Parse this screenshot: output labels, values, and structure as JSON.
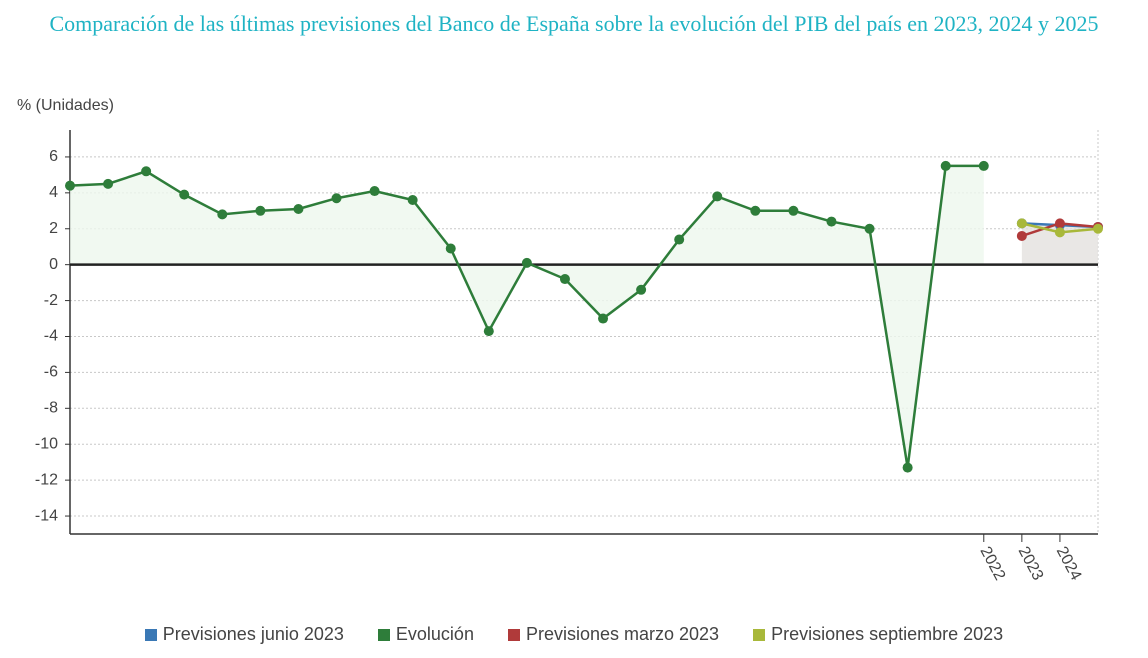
{
  "chart_data": {
    "type": "line",
    "title": "Comparación de las últimas previsiones del Banco de España sobre la evolución del PIB del país en 2023, 2024 y 2025",
    "y_label": "% (Unidades)",
    "categories": [
      null,
      null,
      null,
      null,
      null,
      null,
      null,
      null,
      null,
      null,
      null,
      null,
      null,
      null,
      null,
      null,
      null,
      null,
      null,
      null,
      null,
      null,
      null,
      null,
      "2022",
      "2023",
      "2024",
      null
    ],
    "series": [
      {
        "name": "Previsiones junio 2023",
        "color": "#3a78b5",
        "values": [
          null,
          null,
          null,
          null,
          null,
          null,
          null,
          null,
          null,
          null,
          null,
          null,
          null,
          null,
          null,
          null,
          null,
          null,
          null,
          null,
          null,
          null,
          null,
          null,
          null,
          2.3,
          2.2,
          2.1
        ]
      },
      {
        "name": "Evolución",
        "color": "#2e7d3a",
        "values": [
          4.4,
          4.5,
          5.2,
          3.9,
          2.8,
          3.0,
          3.1,
          3.7,
          4.1,
          3.6,
          0.9,
          -3.7,
          0.1,
          -0.8,
          -3.0,
          -1.4,
          1.4,
          3.8,
          3.0,
          3.0,
          2.4,
          2.0,
          -11.3,
          5.5,
          5.5,
          null,
          null,
          null
        ]
      },
      {
        "name": "Previsiones marzo 2023",
        "color": "#b03a3a",
        "values": [
          null,
          null,
          null,
          null,
          null,
          null,
          null,
          null,
          null,
          null,
          null,
          null,
          null,
          null,
          null,
          null,
          null,
          null,
          null,
          null,
          null,
          null,
          null,
          null,
          null,
          1.6,
          2.3,
          2.1
        ]
      },
      {
        "name": "Previsiones septiembre 2023",
        "color": "#a8b83a",
        "values": [
          null,
          null,
          null,
          null,
          null,
          null,
          null,
          null,
          null,
          null,
          null,
          null,
          null,
          null,
          null,
          null,
          null,
          null,
          null,
          null,
          null,
          null,
          null,
          null,
          null,
          2.3,
          1.8,
          2.0
        ]
      }
    ],
    "ylim": [
      -15,
      7.5
    ],
    "yticks": [
      -14,
      -12,
      -10,
      -8,
      -6,
      -4,
      -2,
      0,
      2,
      4,
      6
    ],
    "grid": true
  }
}
